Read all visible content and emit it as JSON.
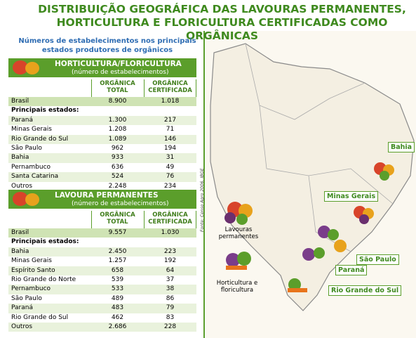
{
  "title": "DISTRIBUIÇÃO GEOGRÁFICA DAS LAVOURAS PERMANENTES, HORTICULTURA E FLORICULTURA CERTIFICADAS COMO ORGÂNICAS",
  "intro": "Números de estabelecimentos nos principais estados produtores de orgânicos",
  "tables": [
    {
      "title": "HORTICULTURA/FLORICULTURA",
      "subtitle": "(número de estabelecimentos)",
      "columns": [
        "ORGÂNICA TOTAL",
        "ORGÂNICA CERTIFICADA"
      ],
      "national": [
        "Brasil",
        "8.900",
        "1.018"
      ],
      "section": "Principais estados:",
      "rows": [
        [
          "Paraná",
          "1.300",
          "217"
        ],
        [
          "Minas Gerais",
          "1.208",
          "71"
        ],
        [
          "Rio Grande do Sul",
          "1.089",
          "146"
        ],
        [
          "São Paulo",
          "962",
          "194"
        ],
        [
          "Bahia",
          "933",
          "31"
        ],
        [
          "Pernambuco",
          "636",
          "49"
        ],
        [
          "Santa Catarina",
          "524",
          "76"
        ],
        [
          "Outros",
          "2.248",
          "234"
        ]
      ]
    },
    {
      "title": "LAVOURA PERMANENTES",
      "subtitle": "(número de estabelecimentos)",
      "columns": [
        "ORGÂNICA TOTAL",
        "ORGÂNICA CERTIFICADA"
      ],
      "national": [
        "Brasil",
        "9.557",
        "1.030"
      ],
      "section": "Principais estados:",
      "rows": [
        [
          "Bahia",
          "2.450",
          "223"
        ],
        [
          "Minas Gerais",
          "1.257",
          "192"
        ],
        [
          "Espírito Santo",
          "658",
          "64"
        ],
        [
          "Rio Grande do Norte",
          "539",
          "37"
        ],
        [
          "Pernambuco",
          "533",
          "38"
        ],
        [
          "São Paulo",
          "489",
          "86"
        ],
        [
          "Paraná",
          "483",
          "79"
        ],
        [
          "Rio Grande do Sul",
          "462",
          "83"
        ],
        [
          "Outros",
          "2.686",
          "228"
        ]
      ]
    }
  ],
  "map_labels": [
    "Bahia",
    "Minas Gerais",
    "São Paulo",
    "Paraná",
    "Rio Grande do Sul"
  ],
  "legend": [
    "Lavouras permanentes",
    "Horticultura e floricultura"
  ],
  "source": "Fonte: Censo Agro 2006, IBGE"
}
